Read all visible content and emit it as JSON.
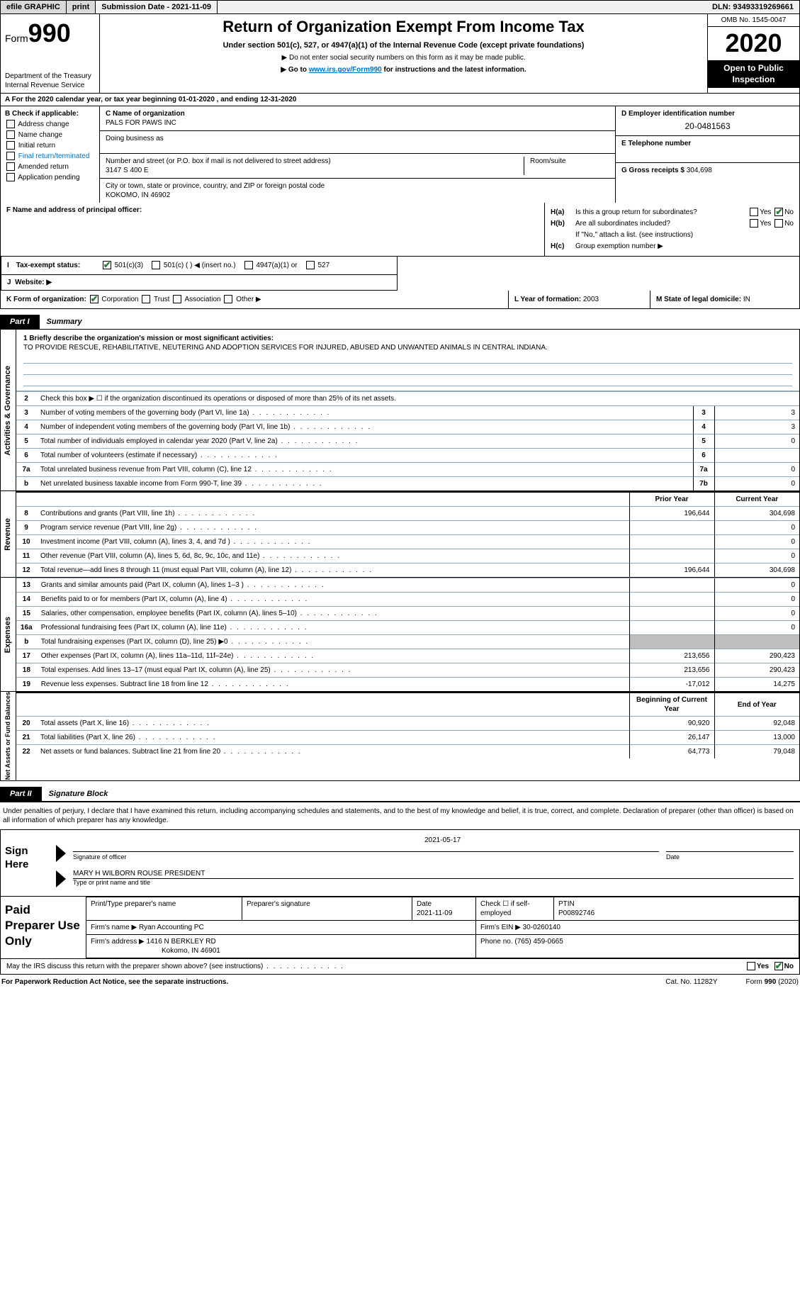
{
  "topbar": {
    "efile": "efile GRAPHIC",
    "print": "print",
    "submission_label": "Submission Date - ",
    "submission_date": "2021-11-09",
    "dln_label": "DLN: ",
    "dln": "93493319269661"
  },
  "header": {
    "form_label": "Form",
    "form_number": "990",
    "dept": "Department of the Treasury\nInternal Revenue Service",
    "title": "Return of Organization Exempt From Income Tax",
    "subtitle": "Under section 501(c), 527, or 4947(a)(1) of the Internal Revenue Code (except private foundations)",
    "note1": "▶ Do not enter social security numbers on this form as it may be made public.",
    "note2_pre": "▶ Go to ",
    "note2_link": "www.irs.gov/Form990",
    "note2_post": " for instructions and the latest information.",
    "omb": "OMB No. 1545-0047",
    "year": "2020",
    "inspect": "Open to Public Inspection"
  },
  "period": "A For the 2020 calendar year, or tax year beginning 01-01-2020   , and ending 12-31-2020",
  "box_b": {
    "title": "B Check if applicable:",
    "items": [
      "Address change",
      "Name change",
      "Initial return",
      "Final return/terminated",
      "Amended return",
      "Application pending"
    ]
  },
  "box_c": {
    "name_label": "C Name of organization",
    "name": "PALS FOR PAWS INC",
    "dba_label": "Doing business as",
    "dba": "",
    "street_label": "Number and street (or P.O. box if mail is not delivered to street address)",
    "street": "3147 S 400 E",
    "room_label": "Room/suite",
    "city_label": "City or town, state or province, country, and ZIP or foreign postal code",
    "city": "KOKOMO, IN  46902"
  },
  "box_d": {
    "label": "D Employer identification number",
    "value": "20-0481563"
  },
  "box_e": {
    "label": "E Telephone number",
    "value": ""
  },
  "box_g": {
    "label": "G Gross receipts $ ",
    "value": "304,698"
  },
  "box_f": {
    "label": "F  Name and address of principal officer:",
    "value": ""
  },
  "box_h": {
    "ha_label": "H(a)",
    "ha_text": "Is this a group return for subordinates?",
    "ha_yes": "Yes",
    "ha_no": "No",
    "hb_label": "H(b)",
    "hb_text": "Are all subordinates included?",
    "hb_note": "If \"No,\" attach a list. (see instructions)",
    "hc_label": "H(c)",
    "hc_text": "Group exemption number ▶"
  },
  "status": {
    "i": "I",
    "label": "Tax-exempt status:",
    "opt1": "501(c)(3)",
    "opt2": "501(c) (  ) ◀ (insert no.)",
    "opt3": "4947(a)(1) or",
    "opt4": "527"
  },
  "website": {
    "j": "J",
    "label": "Website: ▶",
    "value": ""
  },
  "klm": {
    "k": "K Form of organization:",
    "k_opts": [
      "Corporation",
      "Trust",
      "Association",
      "Other ▶"
    ],
    "l": "L Year of formation: ",
    "l_val": "2003",
    "m": "M State of legal domicile: ",
    "m_val": "IN"
  },
  "part1": {
    "tab": "Part I",
    "title": "Summary"
  },
  "mission": {
    "label": "1  Briefly describe the organization's mission or most significant activities:",
    "text": "TO PROVIDE RESCUE, REHABILITATIVE, NEUTERING AND ADOPTION SERVICES FOR INJURED, ABUSED AND UNWANTED ANIMALS IN CENTRAL INDIANA."
  },
  "gov_rows": [
    {
      "n": "2",
      "d": "Check this box ▶ ☐  if the organization discontinued its operations or disposed of more than 25% of its net assets.",
      "c": "",
      "v": ""
    },
    {
      "n": "3",
      "d": "Number of voting members of the governing body (Part VI, line 1a)",
      "c": "3",
      "v": "3"
    },
    {
      "n": "4",
      "d": "Number of independent voting members of the governing body (Part VI, line 1b)",
      "c": "4",
      "v": "3"
    },
    {
      "n": "5",
      "d": "Total number of individuals employed in calendar year 2020 (Part V, line 2a)",
      "c": "5",
      "v": "0"
    },
    {
      "n": "6",
      "d": "Total number of volunteers (estimate if necessary)",
      "c": "6",
      "v": ""
    },
    {
      "n": "7a",
      "d": "Total unrelated business revenue from Part VIII, column (C), line 12",
      "c": "7a",
      "v": "0"
    },
    {
      "n": "b",
      "d": "Net unrelated business taxable income from Form 990-T, line 39",
      "c": "7b",
      "v": "0"
    }
  ],
  "py_cy_header": {
    "py": "Prior Year",
    "cy": "Current Year"
  },
  "rev_rows": [
    {
      "n": "8",
      "d": "Contributions and grants (Part VIII, line 1h)",
      "py": "196,644",
      "cy": "304,698"
    },
    {
      "n": "9",
      "d": "Program service revenue (Part VIII, line 2g)",
      "py": "",
      "cy": "0"
    },
    {
      "n": "10",
      "d": "Investment income (Part VIII, column (A), lines 3, 4, and 7d )",
      "py": "",
      "cy": "0"
    },
    {
      "n": "11",
      "d": "Other revenue (Part VIII, column (A), lines 5, 6d, 8c, 9c, 10c, and 11e)",
      "py": "",
      "cy": "0"
    },
    {
      "n": "12",
      "d": "Total revenue—add lines 8 through 11 (must equal Part VIII, column (A), line 12)",
      "py": "196,644",
      "cy": "304,698"
    }
  ],
  "exp_rows": [
    {
      "n": "13",
      "d": "Grants and similar amounts paid (Part IX, column (A), lines 1–3 )",
      "py": "",
      "cy": "0"
    },
    {
      "n": "14",
      "d": "Benefits paid to or for members (Part IX, column (A), line 4)",
      "py": "",
      "cy": "0"
    },
    {
      "n": "15",
      "d": "Salaries, other compensation, employee benefits (Part IX, column (A), lines 5–10)",
      "py": "",
      "cy": "0"
    },
    {
      "n": "16a",
      "d": "Professional fundraising fees (Part IX, column (A), line 11e)",
      "py": "",
      "cy": "0"
    },
    {
      "n": "b",
      "d": "Total fundraising expenses (Part IX, column (D), line 25) ▶0",
      "py": "GREY",
      "cy": "GREY"
    },
    {
      "n": "17",
      "d": "Other expenses (Part IX, column (A), lines 11a–11d, 11f–24e)",
      "py": "213,656",
      "cy": "290,423"
    },
    {
      "n": "18",
      "d": "Total expenses. Add lines 13–17 (must equal Part IX, column (A), line 25)",
      "py": "213,656",
      "cy": "290,423"
    },
    {
      "n": "19",
      "d": "Revenue less expenses. Subtract line 18 from line 12",
      "py": "-17,012",
      "cy": "14,275"
    }
  ],
  "na_header": {
    "py": "Beginning of Current Year",
    "cy": "End of Year"
  },
  "na_rows": [
    {
      "n": "20",
      "d": "Total assets (Part X, line 16)",
      "py": "90,920",
      "cy": "92,048"
    },
    {
      "n": "21",
      "d": "Total liabilities (Part X, line 26)",
      "py": "26,147",
      "cy": "13,000"
    },
    {
      "n": "22",
      "d": "Net assets or fund balances. Subtract line 21 from line 20",
      "py": "64,773",
      "cy": "79,048"
    }
  ],
  "side_labels": {
    "gov": "Activities & Governance",
    "rev": "Revenue",
    "exp": "Expenses",
    "na": "Net Assets or\nFund Balances"
  },
  "part2": {
    "tab": "Part II",
    "title": "Signature Block"
  },
  "sig_text": "Under penalties of perjury, I declare that I have examined this return, including accompanying schedules and statements, and to the best of my knowledge and belief, it is true, correct, and complete. Declaration of preparer (other than officer) is based on all information of which preparer has any knowledge.",
  "sign": {
    "here": "Sign Here",
    "sig_label": "Signature of officer",
    "date_label": "Date",
    "date_val": "2021-05-17",
    "name": "MARY H WILBORN ROUSE  PRESIDENT",
    "name_label": "Type or print name and title"
  },
  "prep": {
    "left": "Paid Preparer Use Only",
    "h1": "Print/Type preparer's name",
    "h2": "Preparer's signature",
    "h3": "Date",
    "h3v": "2021-11-09",
    "h4": "Check ☐ if self-employed",
    "h5": "PTIN",
    "h5v": "P00892746",
    "firm_label": "Firm's name   ▶ ",
    "firm": "Ryan Accounting PC",
    "ein_label": "Firm's EIN ▶ ",
    "ein": "30-0260140",
    "addr_label": "Firm's address ▶ ",
    "addr1": "1416 N BERKLEY RD",
    "addr2": "Kokomo, IN  46901",
    "phone_label": "Phone no. ",
    "phone": "(765) 459-0665"
  },
  "may": {
    "text": "May the IRS discuss this return with the preparer shown above? (see instructions)",
    "yes": "Yes",
    "no": "No"
  },
  "footer": {
    "fpr": "For Paperwork Reduction Act Notice, see the separate instructions.",
    "cat": "Cat. No. 11282Y",
    "form": "Form 990 (2020)"
  }
}
